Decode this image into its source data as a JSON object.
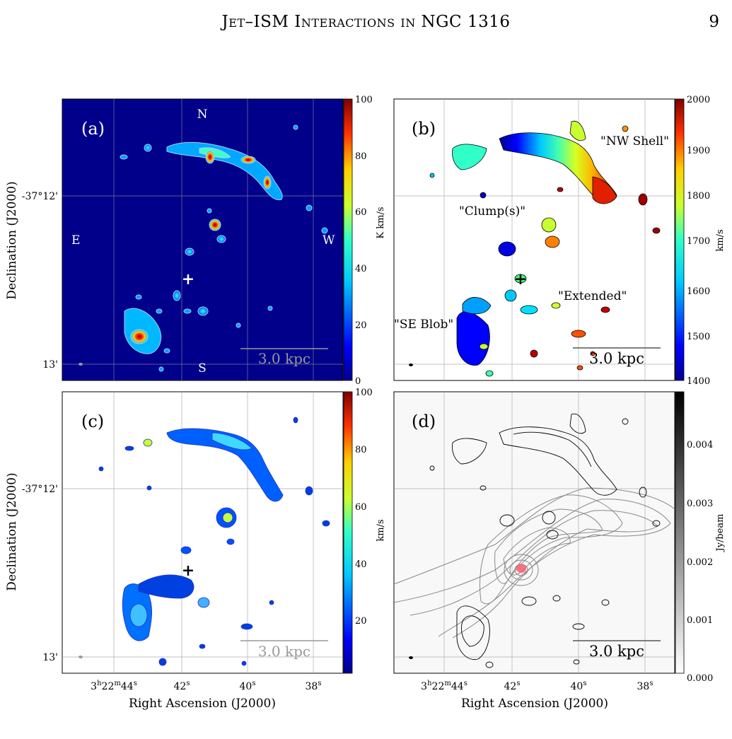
{
  "header": {
    "title": "Jet–ISM Interactions in NGC 1316",
    "page_number": "9"
  },
  "figure": {
    "axes": {
      "ylabel": "Declination (J2000)",
      "xlabel": "Right Ascension (J2000)",
      "y_ticks": [
        "-37°12'",
        "13'"
      ],
      "x_tick_first": "3",
      "x_tick_first_h": "h",
      "x_tick_first_mid": "22",
      "x_tick_first_m": "m",
      "x_tick_first_end": "44",
      "x_tick_first_s": "s",
      "x_ticks_rest": [
        {
          "num": "42",
          "unit": "s"
        },
        {
          "num": "40",
          "unit": "s"
        },
        {
          "num": "38",
          "unit": "s"
        }
      ]
    },
    "panels": [
      {
        "label": "(a)",
        "directions": {
          "north": "N",
          "south": "S",
          "east": "E",
          "west": "W"
        },
        "scalebar": "3.0 kpc",
        "colorbar": {
          "label": "K km/s",
          "ticks": [
            "100",
            "80",
            "60",
            "40",
            "20",
            "0"
          ],
          "colormap": "jet"
        }
      },
      {
        "label": "(b)",
        "annotations": [
          "\"NW Shell\"",
          "\"Clump(s)\"",
          "\"Extended\"",
          "\"SE Blob\""
        ],
        "scalebar": "3.0 kpc",
        "colorbar": {
          "label": "km/s",
          "ticks": [
            "2000",
            "1900",
            "1800",
            "1700",
            "1600",
            "1500",
            "1400"
          ],
          "colormap": "jet"
        }
      },
      {
        "label": "(c)",
        "scalebar": "3.0 kpc",
        "colorbar": {
          "label": "km/s",
          "ticks": [
            "100",
            "80",
            "60",
            "40",
            "20"
          ],
          "colormap": "jet"
        }
      },
      {
        "label": "(d)",
        "scalebar": "3.0 kpc",
        "colorbar": {
          "label": "Jy/beam",
          "ticks": [
            "0.004",
            "0.003",
            "0.002",
            "0.001",
            "0.000"
          ],
          "colormap": "gray"
        }
      }
    ]
  },
  "colors": {
    "panel_a_background": "#00008b",
    "scalebar_gray": "#999999",
    "grid": "#9a9a9a",
    "contour_gray": "#888888"
  }
}
